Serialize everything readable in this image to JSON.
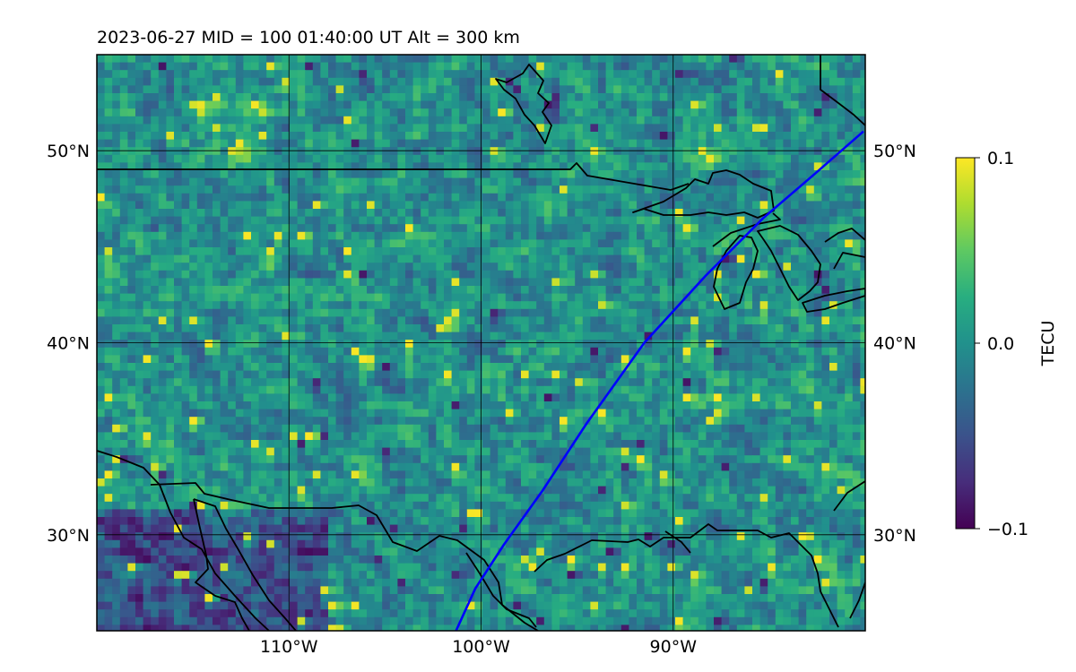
{
  "title": "2023-06-27  MID = 100    01:40:00  UT  Alt = 300 km",
  "map": {
    "lon_range": [
      -120,
      -80
    ],
    "lat_range": [
      25,
      55
    ],
    "lon_ticks": [
      {
        "value": -110,
        "label": "110°W"
      },
      {
        "value": -100,
        "label": "100°W"
      },
      {
        "value": -90,
        "label": "90°W"
      }
    ],
    "lat_ticks": [
      {
        "value": 50,
        "label": "50°N"
      },
      {
        "value": 40,
        "label": "40°N"
      },
      {
        "value": 30,
        "label": "30°N"
      }
    ],
    "colormap": "viridis",
    "track_color": "#0000ff",
    "coastline_color": "#000000",
    "track": [
      [
        -101.3,
        25
      ],
      [
        -100.3,
        27.2
      ],
      [
        -98.8,
        29.5
      ],
      [
        -96.8,
        32.3
      ],
      [
        -94.5,
        35.8
      ],
      [
        -91.5,
        40.0
      ],
      [
        -88.3,
        43.5
      ],
      [
        -85.3,
        46.5
      ],
      [
        -82.5,
        48.9
      ],
      [
        -80.1,
        51.0
      ]
    ]
  },
  "colorbar": {
    "label": "TECU",
    "min": -0.1,
    "max": 0.1,
    "ticks": [
      {
        "value": 0.1,
        "label": "0.1"
      },
      {
        "value": 0.0,
        "label": "0.0"
      },
      {
        "value": -0.1,
        "label": "−0.1"
      }
    ]
  }
}
